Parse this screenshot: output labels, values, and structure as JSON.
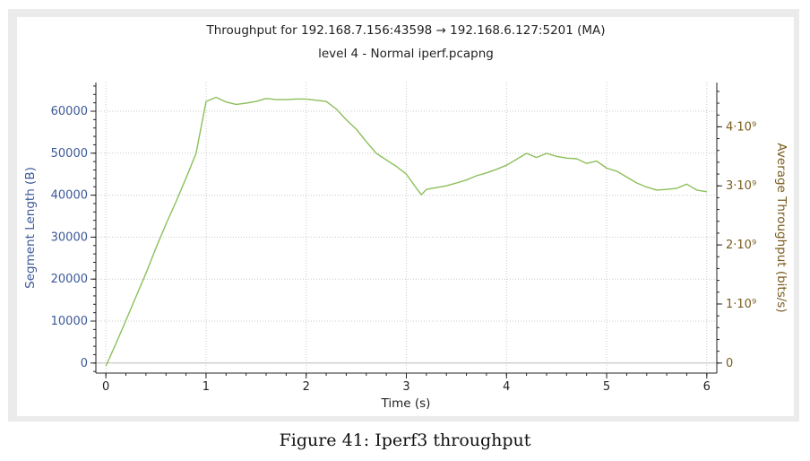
{
  "caption": "Figure 41: Iperf3 throughput",
  "colors": {
    "left_axis": "#3b5998",
    "right_axis": "#7a5c1e",
    "series": "#8cbf5a",
    "grid": "#c8c8c8"
  },
  "chart_data": {
    "type": "line",
    "title": "Throughput for 192.168.7.156:43598 → 192.168.6.127:5201 (MA)",
    "subtitle": "level 4 - Normal iperf.pcapng",
    "xlabel": "Time (s)",
    "ylabel_left": "Segment Length (B)",
    "ylabel_right": "Average Throughput (bits/s)",
    "xlim": [
      -0.1,
      6.1
    ],
    "ylim_right": [
      -170000000.0,
      4750000000.0
    ],
    "x_ticks": [
      {
        "v": 0,
        "label": "0"
      },
      {
        "v": 1,
        "label": "1"
      },
      {
        "v": 2,
        "label": "2"
      },
      {
        "v": 3,
        "label": "3"
      },
      {
        "v": 4,
        "label": "4"
      },
      {
        "v": 5,
        "label": "5"
      },
      {
        "v": 6,
        "label": "6"
      }
    ],
    "y_left_ticks": [
      {
        "v": 0,
        "label": "0"
      },
      {
        "v": 10000,
        "label": "10000"
      },
      {
        "v": 20000,
        "label": "20000"
      },
      {
        "v": 30000,
        "label": "30000"
      },
      {
        "v": 40000,
        "label": "40000"
      },
      {
        "v": 50000,
        "label": "50000"
      },
      {
        "v": 60000,
        "label": "60000"
      }
    ],
    "y_right_ticks": [
      {
        "v": 0,
        "label": "0"
      },
      {
        "v": 1000000000.0,
        "label": "1·10⁹"
      },
      {
        "v": 2000000000.0,
        "label": "2·10⁹"
      },
      {
        "v": 3000000000.0,
        "label": "3·10⁹"
      },
      {
        "v": 4000000000.0,
        "label": "4·10⁹"
      }
    ],
    "grid": true,
    "series": [
      {
        "x": [
          0.0,
          0.1,
          0.2,
          0.3,
          0.4,
          0.5,
          0.6,
          0.7,
          0.8,
          0.9,
          1.0,
          1.1,
          1.2,
          1.3,
          1.4,
          1.5,
          1.6,
          1.7,
          1.8,
          1.9,
          2.0,
          2.1,
          2.2,
          2.3,
          2.4,
          2.5,
          2.6,
          2.7,
          2.8,
          2.9,
          3.0,
          3.1,
          3.15,
          3.2,
          3.3,
          3.4,
          3.5,
          3.6,
          3.7,
          3.8,
          3.9,
          4.0,
          4.1,
          4.2,
          4.3,
          4.4,
          4.5,
          4.6,
          4.7,
          4.8,
          4.9,
          5.0,
          5.1,
          5.2,
          5.3,
          5.4,
          5.5,
          5.6,
          5.7,
          5.8,
          5.9,
          6.0
        ],
        "y": [
          -50000000.0,
          330000000.0,
          720000000.0,
          1120000000.0,
          1520000000.0,
          1950000000.0,
          2350000000.0,
          2730000000.0,
          3130000000.0,
          3550000000.0,
          4430000000.0,
          4500000000.0,
          4420000000.0,
          4380000000.0,
          4400000000.0,
          4430000000.0,
          4480000000.0,
          4460000000.0,
          4460000000.0,
          4470000000.0,
          4470000000.0,
          4450000000.0,
          4430000000.0,
          4300000000.0,
          4120000000.0,
          3960000000.0,
          3750000000.0,
          3550000000.0,
          3440000000.0,
          3330000000.0,
          3200000000.0,
          2960000000.0,
          2850000000.0,
          2940000000.0,
          2970000000.0,
          3000000000.0,
          3050000000.0,
          3100000000.0,
          3170000000.0,
          3220000000.0,
          3280000000.0,
          3350000000.0,
          3450000000.0,
          3550000000.0,
          3480000000.0,
          3550000000.0,
          3500000000.0,
          3470000000.0,
          3460000000.0,
          3380000000.0,
          3420000000.0,
          3300000000.0,
          3250000000.0,
          3150000000.0,
          3050000000.0,
          2980000000.0,
          2930000000.0,
          2940000000.0,
          2960000000.0,
          3030000000.0,
          2930000000.0,
          2900000000.0
        ]
      }
    ]
  }
}
